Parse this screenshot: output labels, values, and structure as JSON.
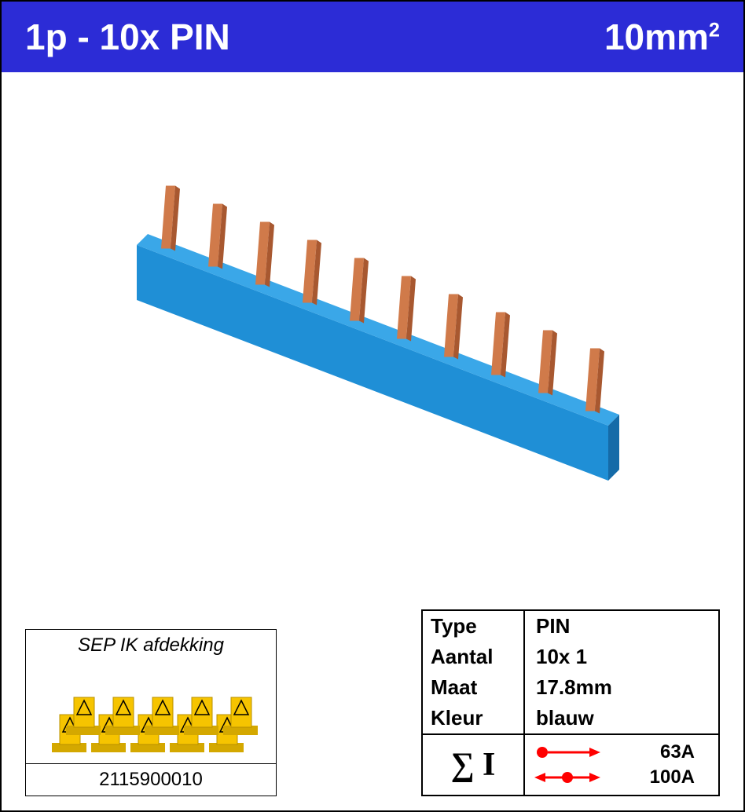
{
  "header": {
    "left": "1p - 10x PIN",
    "right_base": "10mm",
    "right_sup": "2",
    "bg_color": "#2c2cd6",
    "text_color": "#ffffff"
  },
  "product": {
    "bar_color": "#1f8fd6",
    "pin_color": "#d07a4a",
    "pin_count": 10
  },
  "accessory": {
    "title": "SEP IK afdekking",
    "code": "2115900010",
    "piece_color": "#f6c400",
    "piece_count": 10
  },
  "spec": {
    "rows": [
      {
        "label": "Type",
        "value": "PIN"
      },
      {
        "label": "Aantal",
        "value": "10x 1"
      },
      {
        "label": "Maat",
        "value": "17.8mm"
      },
      {
        "label": "Kleur",
        "value": "blauw"
      }
    ],
    "sigma_label": "∑ I",
    "ratings": [
      {
        "arrow": "single",
        "value": "63A",
        "color": "#ff0000"
      },
      {
        "arrow": "double",
        "value": "100A",
        "color": "#ff0000"
      }
    ]
  }
}
